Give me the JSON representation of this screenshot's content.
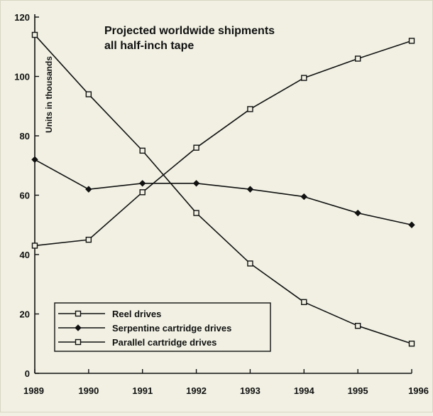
{
  "chart_data": {
    "type": "line",
    "title_lines": [
      "Projected worldwide shipments",
      "all half-inch tape"
    ],
    "xlabel": "",
    "ylabel": "Units in thousands",
    "x": [
      1989,
      1990,
      1991,
      1992,
      1993,
      1994,
      1995,
      1996
    ],
    "xticks": [
      "1989",
      "1990",
      "1991",
      "1992",
      "1993",
      "1994",
      "1995",
      "1996"
    ],
    "yticks": [
      "0",
      "20",
      "40",
      "60",
      "80",
      "100",
      "120"
    ],
    "xlim": [
      1989,
      1996
    ],
    "ylim": [
      0,
      120
    ],
    "grid": false,
    "legend_position": "bottom-left",
    "series": [
      {
        "name": "Reel drives",
        "marker": "open-square",
        "values": [
          114,
          94,
          75,
          54,
          37,
          24,
          16,
          10
        ]
      },
      {
        "name": "Serpentine cartridge drives",
        "marker": "filled-diamond",
        "values": [
          72,
          62,
          64,
          64,
          62,
          59.5,
          54,
          50
        ]
      },
      {
        "name": "Parallel cartridge drives",
        "marker": "open-square",
        "values": [
          43,
          45,
          61,
          76,
          89,
          99.5,
          106,
          112
        ]
      }
    ]
  }
}
